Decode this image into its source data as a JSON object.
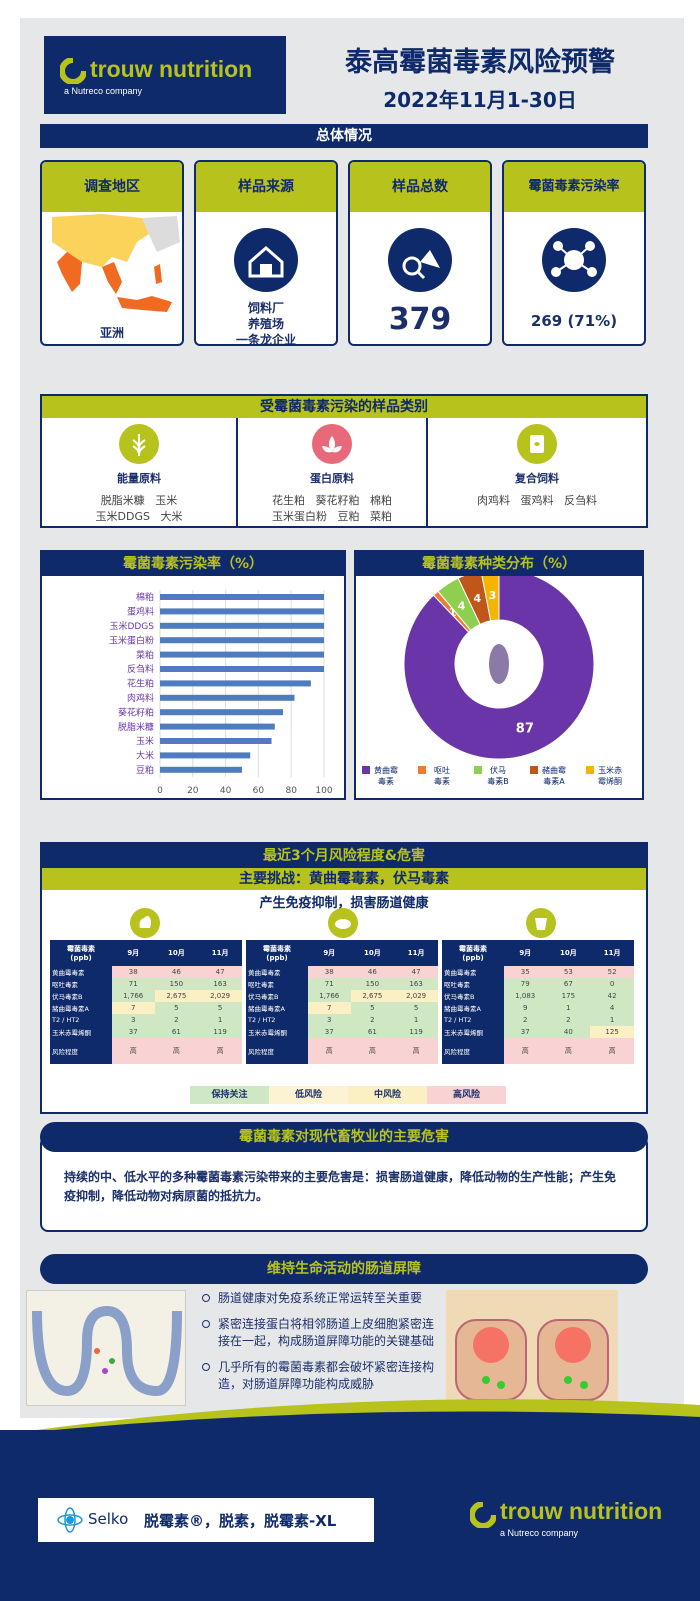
{
  "header": {
    "logo": "trouw nutrition",
    "logo_sub": "a Nutreco company",
    "title": "泰高霉菌毒素风险预警",
    "date": "2022年11月1-30日"
  },
  "overview": {
    "title": "总体情况",
    "cards": [
      {
        "head": "调查地区",
        "value": "亚洲"
      },
      {
        "head": "样品来源",
        "lines": [
          "饲料厂",
          "养殖场",
          "一条龙企业"
        ]
      },
      {
        "head": "样品总数",
        "value": "379"
      },
      {
        "head": "霉菌毒素污染率",
        "value": "269 (71%)"
      }
    ]
  },
  "categories": {
    "title": "受霉菌毒素污染的样品类别",
    "cols": [
      {
        "name": "能量原料",
        "line1": "脱脂米糠   玉米",
        "line2": "玉米DDGS   大米"
      },
      {
        "name": "蛋白原料",
        "line1": "花生粕   葵花籽粕   棉粕",
        "line2": "玉米蛋白粉   豆粕   菜粕"
      },
      {
        "name": "复合饲料",
        "line1": "肉鸡料   蛋鸡料   反刍料",
        "line2": ""
      }
    ]
  },
  "bar_panel_title": "霉菌毒素污染率（%）",
  "pie_panel_title": "霉菌毒素种类分布（%）",
  "chart_data": [
    {
      "type": "bar",
      "orientation": "horizontal",
      "categories": [
        "棉粕",
        "蛋鸡料",
        "玉米DDGS",
        "玉米蛋白粉",
        "菜粕",
        "反刍料",
        "花生粕",
        "肉鸡料",
        "葵花籽粕",
        "脱脂米糠",
        "玉米",
        "大米",
        "豆粕"
      ],
      "values": [
        100,
        100,
        100,
        100,
        100,
        100,
        92,
        82,
        75,
        70,
        68,
        55,
        50
      ],
      "xlim": [
        0,
        100
      ],
      "xticks": [
        0,
        20,
        40,
        60,
        80,
        100
      ],
      "grid": true,
      "color": "#4f7bbf"
    },
    {
      "type": "pie",
      "donut": true,
      "slices": [
        {
          "label": "黄曲霉毒素",
          "value": 87,
          "color": "#6a35a8"
        },
        {
          "label": "呕吐毒素",
          "value": 1,
          "color": "#ee7a33"
        },
        {
          "label": "伏马毒素B",
          "value": 4,
          "color": "#8fcf4f"
        },
        {
          "label": "赭曲霉毒素A",
          "value": 4,
          "color": "#c0561a"
        },
        {
          "label": "玉米赤霉烯酮",
          "value": 3,
          "color": "#f4b400"
        }
      ],
      "legend_labels": [
        [
          "黄曲霉",
          "毒素"
        ],
        [
          "呕吐",
          "毒素"
        ],
        [
          "伏马",
          "毒素B"
        ],
        [
          "赭曲霉",
          "毒素A"
        ],
        [
          "玉米赤",
          "霉烯酮"
        ]
      ],
      "legend": "bottom"
    }
  ],
  "risk": {
    "title": "最近3个月风险程度&危害",
    "challenge": "主要挑战：黄曲霉毒素，伏马毒素",
    "sub": "产生免疫抑制，损害肠道健康",
    "header": [
      "霉菌毒素\n(ppb)",
      "9月",
      "10月",
      "11月"
    ],
    "row_labels": [
      "黄曲霉毒素",
      "呕吐毒素",
      "伏马毒素B",
      "赭曲霉毒素A",
      "T2 / HT2",
      "玉米赤霉烯酮",
      "风险程度"
    ],
    "tables": [
      {
        "animal": "poultry",
        "rows": [
          [
            "38",
            "46",
            "47"
          ],
          [
            "71",
            "150",
            "163"
          ],
          [
            "1,766",
            "2,675",
            "2,029"
          ],
          [
            "7",
            "5",
            "5"
          ],
          [
            "3",
            "2",
            "1"
          ],
          [
            "37",
            "61",
            "119"
          ],
          [
            "高",
            "高",
            "高"
          ]
        ]
      },
      {
        "animal": "swine",
        "rows": [
          [
            "38",
            "46",
            "47"
          ],
          [
            "71",
            "150",
            "163"
          ],
          [
            "1,766",
            "2,675",
            "2,029"
          ],
          [
            "7",
            "5",
            "5"
          ],
          [
            "3",
            "2",
            "1"
          ],
          [
            "37",
            "61",
            "119"
          ],
          [
            "高",
            "高",
            "高"
          ]
        ]
      },
      {
        "animal": "ruminant",
        "rows": [
          [
            "35",
            "53",
            "52"
          ],
          [
            "79",
            "67",
            "0"
          ],
          [
            "1,083",
            "175",
            "42"
          ],
          [
            "9",
            "1",
            "4"
          ],
          [
            "2",
            "2",
            "1"
          ],
          [
            "37",
            "40",
            "125"
          ],
          [
            "高",
            "高",
            "高"
          ]
        ]
      }
    ],
    "legend": [
      "保持关注",
      "低风险",
      "中风险",
      "高风险"
    ]
  },
  "hazard": {
    "title": "霉菌毒素对现代畜牧业的主要危害",
    "text": "持续的中、低水平的多种霉菌毒素污染带来的主要危害是：损害肠道健康，降低动物的生产性能；产生免疫抑制，降低动物对病原菌的抵抗力。"
  },
  "gut": {
    "title": "维持生命活动的肠道屏障",
    "bullets": [
      "肠道健康对免疫系统正常运转至关重要",
      "紧密连接蛋白将相邻肠道上皮细胞紧密连接在一起，构成肠道屏障功能的关键基础",
      "几乎所有的霉菌毒素都会破坏紧密连接构造，对肠道屏障功能构成威胁"
    ]
  },
  "footer": {
    "selko": "Selko",
    "products": "脱霉素®，脱素，脱霉素-XL",
    "logo": "trouw nutrition",
    "logo_sub": "a Nutreco company"
  }
}
